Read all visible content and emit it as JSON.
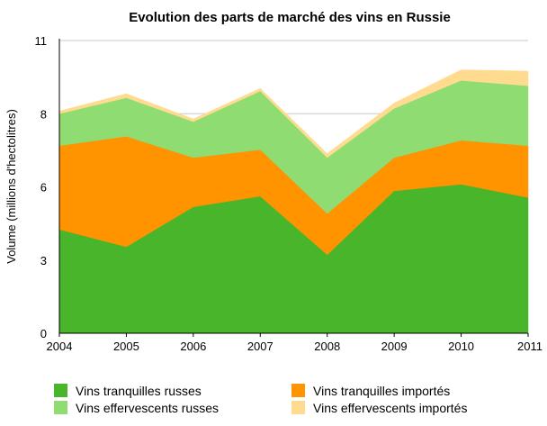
{
  "chart_data": {
    "type": "area",
    "stacked": true,
    "title": "Evolution des parts de marché des vins en Russie",
    "ylabel": "Volume (millions d'hectolitres)",
    "xlabel": "",
    "x": [
      "2004",
      "2005",
      "2006",
      "2007",
      "2008",
      "2009",
      "2010",
      "2011"
    ],
    "y_ticks": [
      "0",
      "3",
      "6",
      "8",
      "11"
    ],
    "ylim": [
      0,
      11
    ],
    "grid": "horizontal",
    "legend_position": "bottom",
    "series": [
      {
        "name": "Vins tranquilles russes",
        "color": "#48b52a",
        "values": [
          3.9,
          3.25,
          4.75,
          5.15,
          2.95,
          5.35,
          5.6,
          5.1
        ]
      },
      {
        "name": "Vins tranquilles importés",
        "color": "#ff9400",
        "values": [
          3.15,
          4.15,
          1.85,
          1.75,
          1.55,
          1.25,
          1.65,
          1.95
        ]
      },
      {
        "name": "Vins effervescents russes",
        "color": "#8fdc72",
        "values": [
          1.2,
          1.45,
          1.35,
          2.2,
          2.1,
          1.85,
          2.25,
          2.25
        ]
      },
      {
        "name": "Vins effervescents importés",
        "color": "#ffdb8f",
        "values": [
          0.1,
          0.15,
          0.1,
          0.1,
          0.15,
          0.2,
          0.4,
          0.55
        ]
      }
    ]
  }
}
